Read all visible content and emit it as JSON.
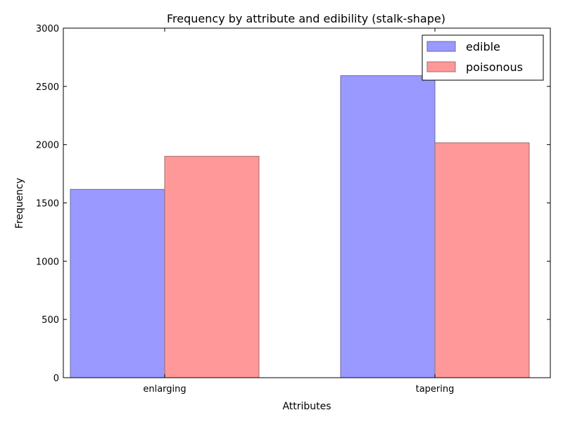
{
  "chart_data": {
    "type": "bar",
    "title": "Frequency by attribute and edibility (stalk-shape)",
    "xlabel": "Attributes",
    "ylabel": "Frequency",
    "categories": [
      "enlarging",
      "tapering"
    ],
    "series": [
      {
        "name": "edible",
        "color": "#9999ff",
        "values": [
          1616,
          2592
        ]
      },
      {
        "name": "poisonous",
        "color": "#ff9999",
        "values": [
          1900,
          2016
        ]
      }
    ],
    "ylim": [
      0,
      3000
    ],
    "yticks": [
      0,
      500,
      1000,
      1500,
      2000,
      2500,
      3000
    ],
    "ytick_labels": [
      "0",
      "500",
      "1000",
      "1500",
      "2000",
      "2500",
      "3000"
    ],
    "grid": false,
    "legend_position": "top-right"
  }
}
